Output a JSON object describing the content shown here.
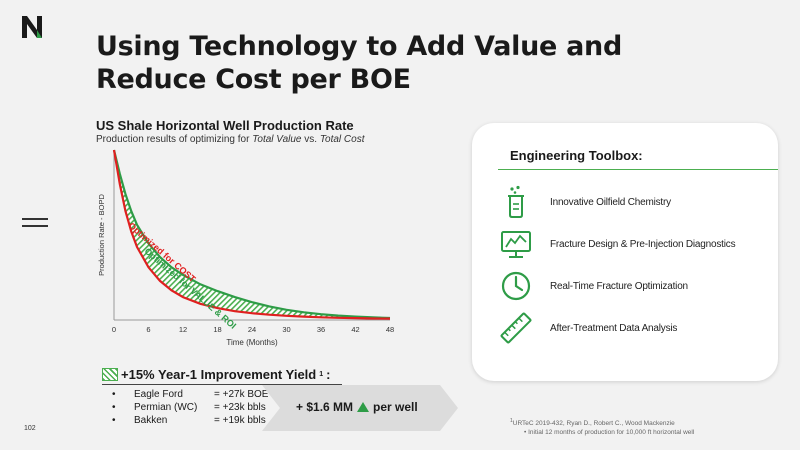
{
  "slide": {
    "title": "Using Technology to Add Value and Reduce Cost per BOE",
    "page_number": "102"
  },
  "chart": {
    "title": "US Shale Horizontal Well Production Rate",
    "subtitle_prefix": "Production results of optimizing for ",
    "subtitle_em1": "Total Value",
    "subtitle_mid": " vs. ",
    "subtitle_em2": "Total Cost"
  },
  "chart_data": {
    "type": "line",
    "title": "US Shale Horizontal Well Production Rate",
    "xlabel": "Time (Months)",
    "ylabel": "Production Rate - BOPD",
    "xlim": [
      0,
      48
    ],
    "x_ticks": [
      "0",
      "6",
      "12",
      "18",
      "24",
      "30",
      "36",
      "42",
      "48"
    ],
    "x_tick_values": [
      0,
      6,
      12,
      18,
      24,
      30,
      36,
      42,
      48
    ],
    "y_ticks_shown": false,
    "grid": false,
    "x": [
      0,
      1,
      2,
      3,
      4,
      6,
      8,
      10,
      12,
      15,
      18,
      21,
      24,
      27,
      30,
      33,
      36,
      39,
      42,
      45,
      48
    ],
    "series": [
      {
        "name": "Optimized for VALUE & ROI",
        "color": "#2e9c47",
        "values": [
          100,
          86,
          74,
          64,
          56,
          45,
          37,
          31,
          26.5,
          21,
          17,
          13.5,
          10.5,
          8,
          6,
          4.5,
          3.4,
          2.6,
          2,
          1.5,
          1.2
        ]
      },
      {
        "name": "Optimized for COST",
        "color": "#e02020",
        "values": [
          100,
          80,
          64,
          52,
          43,
          31,
          23,
          17.5,
          13.5,
          9.5,
          7,
          5.2,
          4,
          3.1,
          2.5,
          2,
          1.6,
          1.3,
          1.1,
          0.9,
          0.8
        ]
      }
    ],
    "fill_between": "hatched green area between series"
  },
  "improvement": {
    "headline": "+15% Year-1 Improvement Yield",
    "superscript": "1",
    "colon": ":",
    "items": [
      {
        "bullet": "•",
        "name": "Eagle Ford",
        "value": "= +27k BOE"
      },
      {
        "bullet": "•",
        "name": "Permian (WC)",
        "value": "= +23k bbls"
      },
      {
        "bullet": "•",
        "name": "Bakken",
        "value": "= +19k bbls"
      }
    ],
    "savings_prefix": "+ $1.6 MM",
    "savings_suffix": "per well"
  },
  "toolbox": {
    "title": "Engineering Toolbox:",
    "items": [
      {
        "icon": "chemistry-icon",
        "label": "Innovative Oilfield Chemistry"
      },
      {
        "icon": "monitor-chart-icon",
        "label": "Fracture Design & Pre-Injection Diagnostics"
      },
      {
        "icon": "clock-icon",
        "label": "Real-Time Fracture Optimization"
      },
      {
        "icon": "ruler-icon",
        "label": "After-Treatment Data Analysis"
      }
    ]
  },
  "footnote": {
    "line1_sup": "1",
    "line1": "URTeC 2019-432, Ryan D., Robert C., Wood Mackenzie",
    "line2_bullet": "•",
    "line2": "Initial 12 months of production for 10,000 ft horizontal well"
  },
  "colors": {
    "accent_green": "#2e9c47",
    "cost_red": "#e02020",
    "background": "#f2f2f2",
    "brand_dark": "#1a1a1a"
  }
}
